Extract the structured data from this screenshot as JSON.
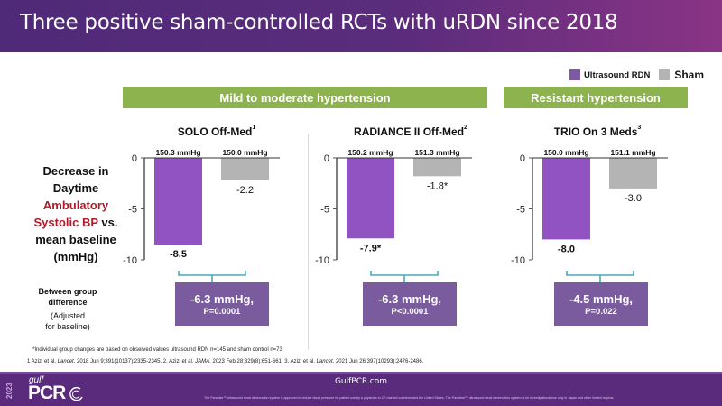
{
  "header": {
    "title": "Three positive sham-controlled RCTs with uRDN since 2018"
  },
  "legend": {
    "items": [
      {
        "label": "Ultrasound RDN",
        "color": "#7e5aa6"
      },
      {
        "label": "Sham",
        "color": "#b4b4b4"
      }
    ]
  },
  "bands": {
    "mild": "Mild to moderate hypertension",
    "resistant": "Resistant hypertension"
  },
  "y_axis_label": {
    "line1": "Decrease in",
    "line2": "Daytime",
    "line3_red": "Ambulatory",
    "line4_red": "Systolic BP",
    "line4_black": " vs.",
    "line5": "mean baseline",
    "line6": "(mmHg)"
  },
  "between_group": {
    "title_line1": "Between group",
    "title_line2": "difference",
    "note_line1": "(Adjusted",
    "note_line2": "for baseline)"
  },
  "chart_data": [
    {
      "type": "bar",
      "title": "SOLO Off-Med",
      "title_sup": "1",
      "categories": [
        "Ultrasound RDN",
        "Sham"
      ],
      "values": [
        -8.5,
        -2.2
      ],
      "value_labels": [
        "-8.5",
        "-2.2"
      ],
      "baseline_labels": [
        "150.3 mmHg",
        "150.0 mmHg"
      ],
      "colors": [
        "#9152c2",
        "#b4b4b4"
      ],
      "ylim": [
        -10,
        0
      ],
      "yticks": [
        0,
        -5,
        -10
      ],
      "ytick_labels": [
        "0",
        "-5",
        "-10"
      ],
      "ylabel": "Decrease in Daytime Ambulatory Systolic BP vs. mean baseline (mmHg)",
      "difference": {
        "value": "-6.3 mmHg,",
        "p": "P=0.0001"
      }
    },
    {
      "type": "bar",
      "title": "RADIANCE II Off-Med",
      "title_sup": "2",
      "categories": [
        "Ultrasound RDN",
        "Sham"
      ],
      "values": [
        -7.9,
        -1.8
      ],
      "value_labels": [
        "-7.9*",
        "-1.8*"
      ],
      "baseline_labels": [
        "150.2 mmHg",
        "151.3 mmHg"
      ],
      "colors": [
        "#9152c2",
        "#b4b4b4"
      ],
      "ylim": [
        -10,
        0
      ],
      "yticks": [
        0,
        -5,
        -10
      ],
      "ytick_labels": [
        "0",
        "-5",
        "-10"
      ],
      "ylabel": "",
      "difference": {
        "value": "-6.3 mmHg,",
        "p": "P<0.0001"
      }
    },
    {
      "type": "bar",
      "title": "TRIO On 3 Meds",
      "title_sup": "3",
      "categories": [
        "Ultrasound RDN",
        "Sham"
      ],
      "values": [
        -8.0,
        -3.0
      ],
      "value_labels": [
        "-8.0",
        "-3.0"
      ],
      "baseline_labels": [
        "150.0 mmHg",
        "151.1 mmHg"
      ],
      "colors": [
        "#9152c2",
        "#b4b4b4"
      ],
      "ylim": [
        -10,
        0
      ],
      "yticks": [
        0,
        -5,
        -10
      ],
      "ytick_labels": [
        "0",
        "-5",
        "-10"
      ],
      "ylabel": "",
      "difference": {
        "value": "-4.5 mmHg,",
        "p": "P=0.022"
      }
    }
  ],
  "footnotes": {
    "asterisk": "*Individual group changes are based on observed values ultrasound RDN n=145 and sham control n=73",
    "refs": [
      {
        "pre": "1  Azizi et al. ",
        "journal": "Lancet",
        "post": ". 2018 Jun 9;391(10137):2335-2345. "
      },
      {
        "pre": "2. Azizi et al. ",
        "journal": "JAMA",
        "post": ". 2023 Feb 28;329(8):651-661.  "
      },
      {
        "pre": "3. Azizi et al. ",
        "journal": "Lancet",
        "post": ". 2021 Jun 26;397(10293):2476-2486."
      }
    ]
  },
  "footer": {
    "year": "2023",
    "logo_gulf": "gulf",
    "logo_pcr": "PCR",
    "website": "GulfPCR.com",
    "disclaimer": "The Paradise™ ultrasound renal denervation system is approved to reduce blood pressure for patient use by a physician in CE marked countries and the United States. The Paradise™ ultrasound renal denervation system is for investigational use only in Japan and other limited regions."
  }
}
